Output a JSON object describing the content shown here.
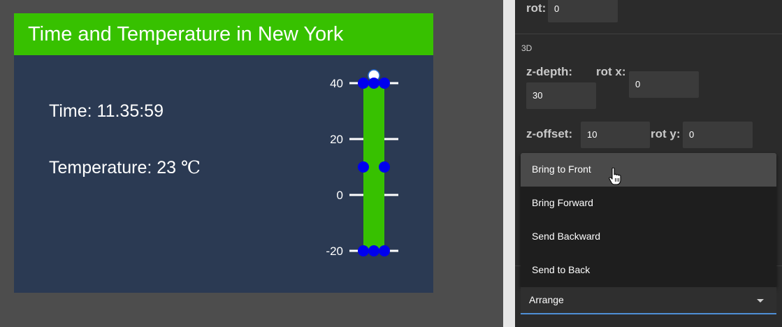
{
  "widget": {
    "title": "Time and Temperature in New York",
    "time_label": "Time:",
    "time_value": "11.35:59",
    "temp_label": "Temperature:",
    "temp_value": "23",
    "temp_unit": "℃",
    "gauge_ticks": [
      "40",
      "20",
      "0",
      "-20"
    ],
    "gauge_range": [
      -20,
      40
    ],
    "gauge_value": 23,
    "colors": {
      "header": "#37c100",
      "card": "#2b3a53",
      "bar": "#37c100",
      "handle": "#0000ee"
    }
  },
  "panel": {
    "rot_label": "rot:",
    "rot_value": "0",
    "section_3d": "3D",
    "zdepth_label": "z-depth:",
    "zdepth_value": "30",
    "rotx_label": "rot x:",
    "rotx_value": "0",
    "zoffset_label": "z-offset:",
    "zoffset_value": "10",
    "roty_label": "rot y:",
    "roty_value": "0"
  },
  "menu": {
    "items": [
      "Bring to Front",
      "Bring Forward",
      "Send Backward",
      "Send to Back"
    ],
    "hovered": "Bring to Front"
  },
  "arrange_select": {
    "value": "Arrange",
    "accent": "#4f8fd6"
  }
}
